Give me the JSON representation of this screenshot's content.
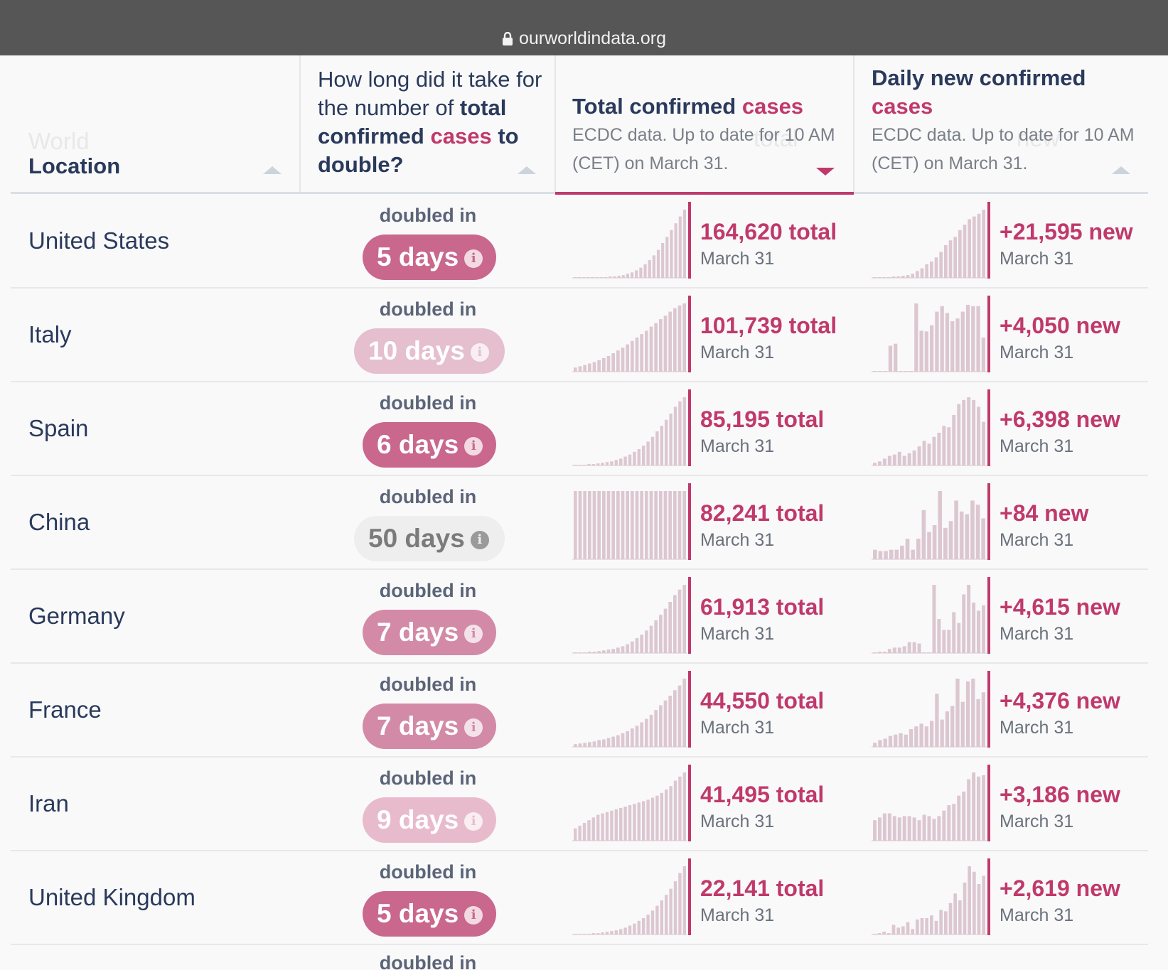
{
  "browser": {
    "url": "ourworldindata.org"
  },
  "header": {
    "ghost_world": "World",
    "location_label": "Location",
    "doubling_question": {
      "pre": "How long did it take for the number of ",
      "bold": "total confirmed",
      "accent": "cases",
      "post": "to double?"
    },
    "total_col": {
      "title": "Total confirmed",
      "accent": "cases",
      "subtitle": "ECDC data. Up to date for 10 AM (CET) on March 31.",
      "ghost": "total"
    },
    "daily_col": {
      "title": "Daily new confirmed",
      "accent": "cases",
      "subtitle": "ECDC data. Up to date for 10 AM (CET) on March 31.",
      "ghost": "new"
    }
  },
  "doubled_in_label": "doubled in",
  "rows": [
    {
      "country": "United States",
      "doubling": "5 days",
      "pill_color": "#c9678d",
      "pill_text_color": "#ffffff",
      "total": "164,620 total",
      "total_date": "March 31",
      "new": "+21,595 new",
      "new_date": "March 31",
      "total_spark": [
        1,
        1,
        1,
        1,
        1,
        1,
        1,
        1,
        2,
        2,
        3,
        4,
        6,
        8,
        11,
        15,
        20,
        26,
        33,
        41,
        51,
        60,
        70,
        80,
        90,
        100
      ],
      "daily_spark": [
        1,
        1,
        1,
        1,
        2,
        2,
        3,
        4,
        6,
        10,
        14,
        20,
        24,
        30,
        38,
        48,
        55,
        60,
        70,
        78,
        86,
        90,
        94,
        100
      ]
    },
    {
      "country": "Italy",
      "doubling": "10 days",
      "pill_color": "#e5bfcd",
      "pill_text_color": "#ffffff",
      "total": "101,739 total",
      "total_date": "March 31",
      "new": "+4,050 new",
      "new_date": "March 31",
      "total_spark": [
        6,
        8,
        10,
        12,
        14,
        17,
        20,
        23,
        27,
        31,
        35,
        40,
        45,
        50,
        55,
        60,
        66,
        71,
        77,
        82,
        88,
        93,
        97,
        100
      ],
      "daily_spark": [
        0,
        0,
        0,
        38,
        41,
        0,
        0,
        0,
        100,
        60,
        59,
        68,
        88,
        96,
        86,
        74,
        78,
        88,
        98,
        96,
        96,
        50
      ]
    },
    {
      "country": "Spain",
      "doubling": "6 days",
      "pill_color": "#c9678d",
      "pill_text_color": "#ffffff",
      "total": "85,195 total",
      "total_date": "March 31",
      "new": "+6,398 new",
      "new_date": "March 31",
      "total_spark": [
        1,
        1,
        1,
        2,
        2,
        3,
        4,
        5,
        6,
        8,
        10,
        13,
        16,
        20,
        24,
        29,
        35,
        42,
        50,
        58,
        67,
        76,
        86,
        94,
        100
      ],
      "daily_spark": [
        4,
        6,
        10,
        14,
        16,
        20,
        14,
        18,
        22,
        28,
        36,
        32,
        42,
        48,
        58,
        56,
        74,
        90,
        96,
        100,
        96,
        86,
        64
      ]
    },
    {
      "country": "China",
      "doubling": "50 days",
      "pill_color": "#eeeeee",
      "pill_text_color": "#7b7b7b",
      "total": "82,241 total",
      "total_date": "March 31",
      "new": "+84 new",
      "new_date": "March 31",
      "total_spark": [
        100,
        100,
        100,
        100,
        100,
        100,
        100,
        100,
        100,
        100,
        100,
        100,
        100,
        100,
        100,
        100,
        100,
        100,
        100,
        100,
        100,
        100,
        100,
        100
      ],
      "daily_spark": [
        14,
        12,
        12,
        14,
        14,
        20,
        30,
        14,
        30,
        72,
        40,
        50,
        100,
        46,
        56,
        86,
        70,
        66,
        86,
        80,
        60
      ]
    },
    {
      "country": "Germany",
      "doubling": "7 days",
      "pill_color": "#d38aa6",
      "pill_text_color": "#ffffff",
      "total": "61,913 total",
      "total_date": "March 31",
      "new": "+4,615 new",
      "new_date": "March 31",
      "total_spark": [
        1,
        1,
        1,
        2,
        2,
        3,
        4,
        5,
        6,
        8,
        10,
        13,
        17,
        22,
        27,
        33,
        40,
        48,
        56,
        65,
        75,
        85,
        93,
        100
      ],
      "daily_spark": [
        0,
        2,
        2,
        6,
        8,
        8,
        10,
        16,
        16,
        14,
        0,
        0,
        100,
        50,
        34,
        34,
        60,
        44,
        86,
        100,
        74,
        62,
        70
      ]
    },
    {
      "country": "France",
      "doubling": "7 days",
      "pill_color": "#d38aa6",
      "pill_text_color": "#ffffff",
      "total": "44,550 total",
      "total_date": "March 31",
      "new": "+4,376 new",
      "new_date": "March 31",
      "total_spark": [
        4,
        5,
        6,
        7,
        8,
        10,
        11,
        13,
        15,
        17,
        20,
        23,
        27,
        31,
        36,
        41,
        47,
        54,
        61,
        68,
        75,
        83,
        90,
        100
      ],
      "daily_spark": [
        6,
        10,
        12,
        16,
        18,
        20,
        18,
        26,
        30,
        34,
        30,
        38,
        78,
        40,
        52,
        60,
        100,
        66,
        96,
        100,
        70,
        80
      ]
    },
    {
      "country": "Iran",
      "doubling": "9 days",
      "pill_color": "#e8bbcc",
      "pill_text_color": "#ffffff",
      "total": "41,495 total",
      "total_date": "March 31",
      "new": "+3,186 new",
      "new_date": "March 31",
      "total_spark": [
        18,
        22,
        26,
        30,
        34,
        38,
        40,
        42,
        44,
        46,
        48,
        50,
        52,
        54,
        56,
        58,
        60,
        63,
        66,
        70,
        75,
        80,
        88,
        94,
        100
      ],
      "daily_spark": [
        30,
        34,
        40,
        40,
        36,
        34,
        36,
        36,
        34,
        30,
        38,
        36,
        32,
        36,
        44,
        52,
        54,
        66,
        72,
        90,
        100,
        94,
        96
      ]
    },
    {
      "country": "United Kingdom",
      "doubling": "5 days",
      "pill_color": "#c9678d",
      "pill_text_color": "#ffffff",
      "total": "22,141 total",
      "total_date": "March 31",
      "new": "+2,619 new",
      "new_date": "March 31",
      "total_spark": [
        1,
        1,
        1,
        1,
        2,
        2,
        3,
        4,
        5,
        6,
        8,
        10,
        13,
        16,
        20,
        24,
        29,
        35,
        42,
        50,
        58,
        67,
        78,
        90,
        100
      ],
      "daily_spark": [
        1,
        2,
        4,
        2,
        14,
        10,
        12,
        18,
        8,
        22,
        24,
        24,
        28,
        20,
        36,
        34,
        46,
        60,
        50,
        76,
        100,
        92,
        74,
        86
      ]
    }
  ],
  "partial_row_label": "doubled in"
}
